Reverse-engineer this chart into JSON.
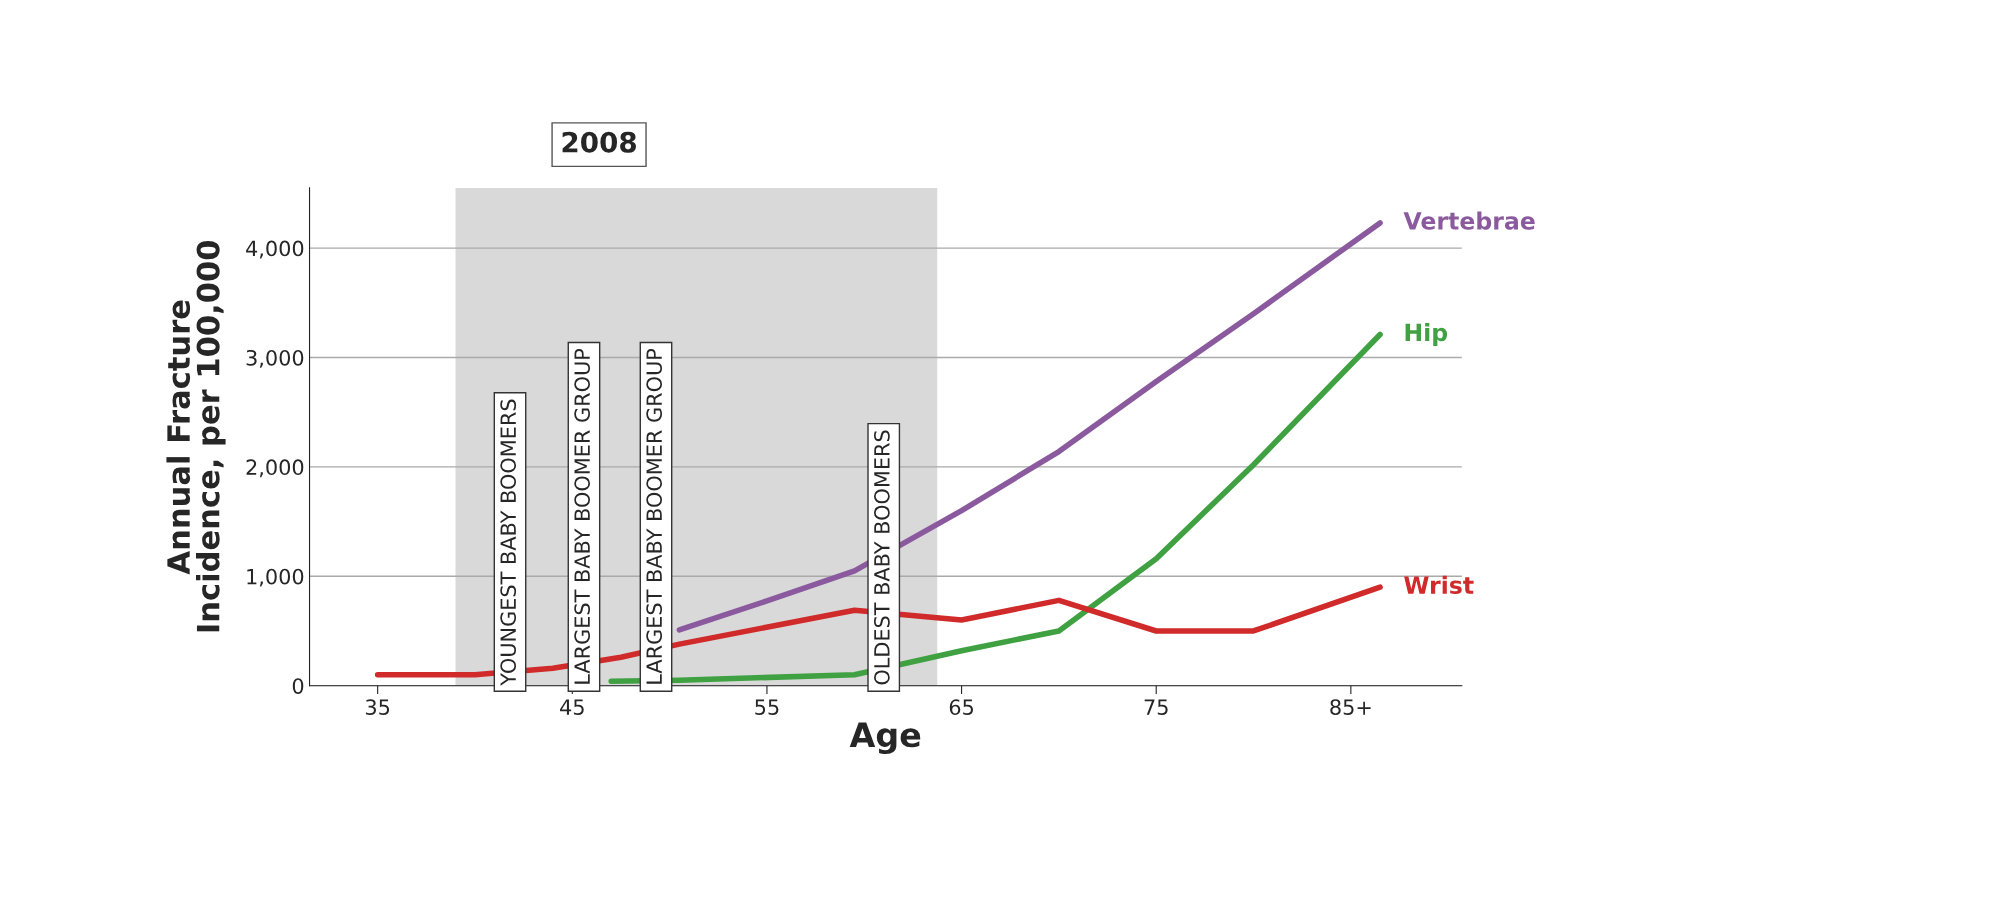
{
  "chart_data": {
    "type": "line",
    "xlabel": "Age",
    "ylabel": "Annual Fracture\nIncidence, per 100,000",
    "xlim": [
      31.5,
      90.7
    ],
    "ylim": [
      0,
      4550
    ],
    "xticks": [
      35,
      45,
      55,
      65,
      75,
      {
        "value": 85,
        "label": "85+"
      }
    ],
    "yticks": [
      0,
      {
        "value": 1000,
        "label": "1,000"
      },
      {
        "value": 2000,
        "label": "2,000"
      },
      {
        "value": 3000,
        "label": "3,000"
      },
      {
        "value": 4000,
        "label": "4,000"
      }
    ],
    "grid": "y",
    "legend": false,
    "series": [
      {
        "name": "Vertebrae",
        "color": "#8b5a9e",
        "x": [
          50.5,
          55,
          59.5,
          65,
          70,
          75,
          80,
          86.5
        ],
        "values": [
          510,
          775,
          1050,
          1600,
          2140,
          2780,
          3400,
          4230
        ]
      },
      {
        "name": "Hip",
        "color": "#3fa142",
        "x": [
          47,
          50.5,
          59.5,
          65,
          70,
          75,
          80,
          86.5
        ],
        "values": [
          40,
          50,
          100,
          320,
          500,
          1160,
          2020,
          3210
        ]
      },
      {
        "name": "Wrist",
        "color": "#d02a2a",
        "x": [
          35,
          40,
          44,
          47.5,
          50.5,
          59.5,
          65,
          70,
          75,
          80,
          86.5
        ],
        "values": [
          100,
          100,
          160,
          260,
          380,
          690,
          600,
          780,
          500,
          500,
          900
        ]
      }
    ],
    "bands": [
      {
        "axis": "x",
        "from": 39.0,
        "to": 63.75,
        "label": "2008",
        "color": "#d9d9d9"
      }
    ],
    "annotations": [
      {
        "text": "YOUNGEST BABY BOOMERS",
        "x": 41.8,
        "y": 0
      },
      {
        "text": "LARGEST BABY BOOMER GROUP",
        "x": 45.6,
        "y": 0
      },
      {
        "text": "LARGEST BABY BOOMER GROUP",
        "x": 49.3,
        "y": 0
      },
      {
        "text": "OLDEST BABY BOOMERS",
        "x": 61.0,
        "y": 0
      }
    ]
  }
}
